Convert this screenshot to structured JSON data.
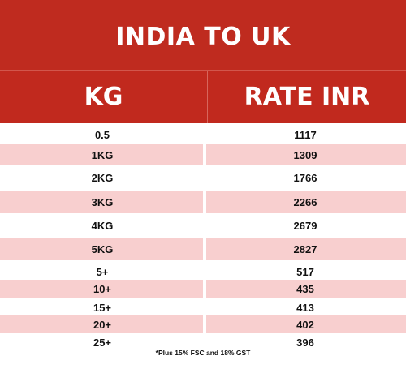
{
  "title": "INDIA TO UK",
  "header": {
    "kg": "KG",
    "rate": "RATE INR"
  },
  "rows": [
    {
      "kg": "0.5",
      "rate": "1117"
    },
    {
      "kg": "1KG",
      "rate": "1309"
    },
    {
      "kg": "2KG",
      "rate": "1766"
    },
    {
      "kg": "3KG",
      "rate": "2266"
    },
    {
      "kg": "4KG",
      "rate": "2679"
    },
    {
      "kg": "5KG",
      "rate": "2827"
    },
    {
      "kg": "5+",
      "rate": "517"
    },
    {
      "kg": "10+",
      "rate": "435"
    },
    {
      "kg": "15+",
      "rate": "413"
    },
    {
      "kg": "20+",
      "rate": "402"
    },
    {
      "kg": "25+",
      "rate": "396"
    }
  ],
  "footnote": "*Plus 15% FSC and 18% GST",
  "colors": {
    "header_red": "#c1291e",
    "row_pink": "#f8cfcf"
  }
}
